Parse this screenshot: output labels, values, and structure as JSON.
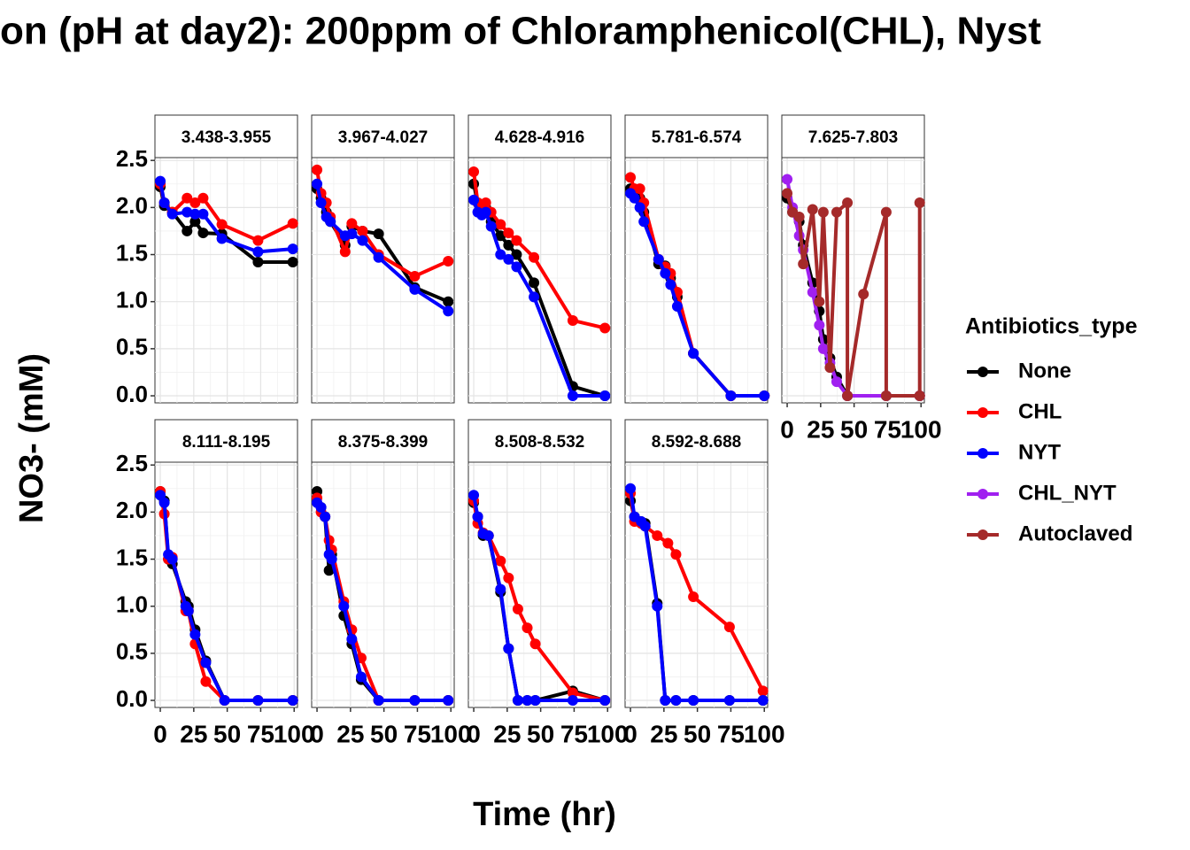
{
  "title": "on (pH at day2): 200ppm of Chloramphenicol(CHL), Nyst",
  "x_label": "Time (hr)",
  "y_label": "NO3- (mM)",
  "legend": {
    "title": "Antibiotics_type",
    "items": [
      {
        "name": "None",
        "color": "#000000"
      },
      {
        "name": "CHL",
        "color": "#ff0000"
      },
      {
        "name": "NYT",
        "color": "#0000ff"
      },
      {
        "name": "CHL_NYT",
        "color": "#a020f0"
      },
      {
        "name": "Autoclaved",
        "color": "#a52a2a"
      }
    ]
  },
  "chart_data": [
    {
      "type": "line",
      "title": "3.438-3.955",
      "x": [
        0,
        3,
        9,
        20,
        26,
        32,
        46,
        73,
        99
      ],
      "series": [
        {
          "name": "None",
          "values": [
            2.22,
            2.02,
            1.95,
            1.75,
            1.85,
            1.73,
            1.72,
            1.42,
            1.42
          ]
        },
        {
          "name": "CHL",
          "values": [
            2.25,
            2.05,
            1.95,
            2.1,
            2.05,
            2.1,
            1.82,
            1.65,
            1.83
          ]
        },
        {
          "name": "NYT",
          "values": [
            2.28,
            2.05,
            1.93,
            1.95,
            1.93,
            1.93,
            1.67,
            1.53,
            1.56
          ]
        }
      ],
      "xlim": [
        -4,
        102.5
      ],
      "ylim": [
        -0.075,
        2.53
      ],
      "xticks": [
        0,
        25,
        50,
        75,
        100
      ],
      "yticks": [
        {
          "value": 0,
          "label": "0.0"
        },
        0.5,
        {
          "value": 1,
          "label": "1.0"
        },
        1.5,
        {
          "value": 2,
          "label": "2.0"
        },
        2.5
      ],
      "grid": true
    },
    {
      "type": "line",
      "title": "3.967-4.027",
      "x": [
        0,
        3,
        7,
        10,
        21,
        26,
        34,
        46,
        73,
        98
      ],
      "series": [
        {
          "name": "None",
          "values": [
            2.2,
            2.1,
            1.95,
            1.85,
            1.6,
            1.8,
            1.75,
            1.72,
            1.15,
            1.0
          ]
        },
        {
          "name": "CHL",
          "values": [
            2.4,
            2.15,
            2.05,
            1.9,
            1.53,
            1.83,
            1.75,
            1.5,
            1.27,
            1.43
          ]
        },
        {
          "name": "NYT",
          "values": [
            2.25,
            2.05,
            1.9,
            1.85,
            1.7,
            1.72,
            1.65,
            1.47,
            1.13,
            0.9
          ]
        }
      ],
      "xlim": [
        -4,
        102.5
      ],
      "ylim": [
        -0.075,
        2.53
      ],
      "xticks": [
        0,
        25,
        50,
        75,
        100
      ],
      "yticks": [
        {
          "value": 0,
          "label": "0.0"
        },
        0.5,
        {
          "value": 1,
          "label": "1.0"
        },
        1.5,
        {
          "value": 2,
          "label": "2.0"
        },
        2.5
      ],
      "grid": true
    },
    {
      "type": "line",
      "title": "4.628-4.916",
      "x": [
        0,
        3,
        6,
        9,
        13,
        20,
        26,
        32,
        45,
        74,
        98
      ],
      "series": [
        {
          "name": "None",
          "values": [
            2.25,
            2.05,
            2.0,
            2.0,
            1.85,
            1.7,
            1.6,
            1.5,
            1.2,
            0.1,
            0.0
          ]
        },
        {
          "name": "CHL",
          "values": [
            2.38,
            2.05,
            2.0,
            2.05,
            1.95,
            1.82,
            1.73,
            1.65,
            1.47,
            0.8,
            0.72
          ]
        },
        {
          "name": "NYT",
          "values": [
            2.08,
            1.95,
            1.92,
            1.95,
            1.8,
            1.5,
            1.45,
            1.37,
            1.05,
            0.0,
            0.0
          ]
        }
      ],
      "xlim": [
        -4,
        102.5
      ],
      "ylim": [
        -0.075,
        2.53
      ],
      "xticks": [
        0,
        25,
        50,
        75,
        100
      ],
      "yticks": [
        {
          "value": 0,
          "label": "0.0"
        },
        0.5,
        {
          "value": 1,
          "label": "1.0"
        },
        1.5,
        {
          "value": 2,
          "label": "2.0"
        },
        2.5
      ],
      "grid": true
    },
    {
      "type": "line",
      "title": "5.781-6.574",
      "x": [
        0,
        3,
        7,
        10,
        21,
        26,
        30,
        35,
        47,
        75,
        100
      ],
      "series": [
        {
          "name": "None",
          "values": [
            2.2,
            2.15,
            2.1,
            1.95,
            1.4,
            1.38,
            1.25,
            1.05,
            0.45,
            0.0,
            0.0
          ]
        },
        {
          "name": "CHL",
          "values": [
            2.32,
            2.2,
            2.2,
            2.05,
            1.45,
            1.37,
            1.3,
            1.1,
            0.45,
            0.0,
            0.0
          ]
        },
        {
          "name": "NYT",
          "values": [
            2.15,
            2.1,
            2.0,
            1.85,
            1.45,
            1.3,
            1.18,
            0.95,
            0.45,
            0.0,
            0.0
          ]
        }
      ],
      "xlim": [
        -4,
        102.5
      ],
      "ylim": [
        -0.075,
        2.53
      ],
      "xticks": [
        0,
        25,
        50,
        75,
        100
      ],
      "yticks": [
        {
          "value": 0,
          "label": "0.0"
        },
        0.5,
        {
          "value": 1,
          "label": "1.0"
        },
        1.5,
        {
          "value": 2,
          "label": "2.0"
        },
        2.5
      ],
      "grid": true
    },
    {
      "type": "line",
      "title": "7.625-7.803",
      "x": [
        0,
        4,
        9,
        12,
        19,
        24,
        27,
        32,
        37,
        45,
        74,
        99
      ],
      "series": [
        {
          "name": "None",
          "values": [
            2.1,
            1.95,
            1.85,
            1.6,
            1.2,
            0.9,
            0.6,
            0.4,
            0.2,
            0.0,
            0.0,
            0.0
          ]
        },
        {
          "name": "CHL_NYT",
          "values": [
            2.3,
            2.0,
            1.7,
            1.55,
            1.1,
            0.75,
            0.5,
            0.35,
            0.15,
            0.0,
            0.0,
            0.0
          ]
        },
        {
          "name": "Autoclaved",
          "x": [
            0,
            4,
            9,
            12,
            19,
            24,
            27,
            32,
            37,
            45,
            45,
            57,
            74,
            74,
            99,
            99
          ],
          "values": [
            2.15,
            1.95,
            1.9,
            1.4,
            1.98,
            1.0,
            1.95,
            0.3,
            1.95,
            2.05,
            0.0,
            1.08,
            1.95,
            0.0,
            0.0,
            2.05
          ]
        }
      ],
      "xlim": [
        -4,
        102.5
      ],
      "ylim": [
        -0.075,
        2.53
      ],
      "xticks": [
        0,
        25,
        50,
        75,
        100
      ],
      "yticks": [
        {
          "value": 0,
          "label": "0.0"
        },
        0.5,
        {
          "value": 1,
          "label": "1.0"
        },
        1.5,
        {
          "value": 2,
          "label": "2.0"
        },
        2.5
      ],
      "grid": true
    },
    {
      "type": "line",
      "title": "8.111-8.195",
      "x": [
        0,
        3,
        6,
        9,
        19,
        21,
        26,
        34,
        48,
        73,
        99
      ],
      "series": [
        {
          "name": "None",
          "values": [
            2.22,
            2.12,
            1.5,
            1.45,
            1.05,
            1.0,
            0.75,
            0.42,
            0.0,
            0.0,
            0.0
          ]
        },
        {
          "name": "CHL",
          "values": [
            2.22,
            1.98,
            1.5,
            1.52,
            0.95,
            0.95,
            0.6,
            0.2,
            0.0,
            0.0,
            0.0
          ]
        },
        {
          "name": "NYT",
          "values": [
            2.18,
            2.1,
            1.55,
            1.5,
            1.0,
            0.95,
            0.7,
            0.4,
            0.0,
            0.0,
            0.0
          ]
        }
      ],
      "xlim": [
        -4,
        102.5
      ],
      "ylim": [
        -0.075,
        2.53
      ],
      "xticks": [
        0,
        25,
        50,
        75,
        100
      ],
      "yticks": [
        {
          "value": 0,
          "label": "0.0"
        },
        0.5,
        {
          "value": 1,
          "label": "1.0"
        },
        1.5,
        {
          "value": 2,
          "label": "2.0"
        },
        2.5
      ],
      "grid": true
    },
    {
      "type": "line",
      "title": "8.375-8.399",
      "x": [
        0,
        3,
        6,
        9,
        11,
        20,
        26,
        33,
        46,
        73,
        98
      ],
      "series": [
        {
          "name": "None",
          "values": [
            2.22,
            2.05,
            1.95,
            1.38,
            1.55,
            0.9,
            0.6,
            0.22,
            0.0,
            0.0,
            0.0
          ]
        },
        {
          "name": "CHL",
          "values": [
            2.15,
            2.0,
            1.95,
            1.7,
            1.6,
            1.05,
            0.75,
            0.45,
            0.0,
            0.0,
            0.0
          ]
        },
        {
          "name": "NYT",
          "values": [
            2.1,
            2.05,
            1.95,
            1.55,
            1.5,
            1.0,
            0.65,
            0.25,
            0.0,
            0.0,
            0.0
          ]
        }
      ],
      "xlim": [
        -4,
        102.5
      ],
      "ylim": [
        -0.075,
        2.53
      ],
      "xticks": [
        0,
        25,
        50,
        75,
        100
      ],
      "yticks": [
        {
          "value": 0,
          "label": "0.0"
        },
        0.5,
        {
          "value": 1,
          "label": "1.0"
        },
        1.5,
        {
          "value": 2,
          "label": "2.0"
        },
        2.5
      ],
      "grid": true
    },
    {
      "type": "line",
      "title": "8.508-8.532",
      "x": [
        0,
        3,
        7,
        11,
        20,
        26,
        33,
        40,
        46,
        74,
        98
      ],
      "series": [
        {
          "name": "None",
          "values": [
            2.1,
            1.95,
            1.75,
            1.75,
            1.15,
            0.55,
            0.0,
            0.0,
            0.0,
            0.1,
            0.0
          ]
        },
        {
          "name": "CHL",
          "values": [
            2.12,
            1.88,
            1.78,
            1.75,
            1.48,
            1.3,
            0.97,
            0.77,
            0.6,
            0.08,
            0.0
          ]
        },
        {
          "name": "NYT",
          "values": [
            2.18,
            1.95,
            1.77,
            1.75,
            1.18,
            0.55,
            0.0,
            0.0,
            0.0,
            0.0,
            0.0
          ]
        }
      ],
      "xlim": [
        -4,
        102.5
      ],
      "ylim": [
        -0.075,
        2.53
      ],
      "xticks": [
        0,
        25,
        50,
        75,
        100
      ],
      "yticks": [
        {
          "value": 0,
          "label": "0.0"
        },
        0.5,
        {
          "value": 1,
          "label": "1.0"
        },
        1.5,
        {
          "value": 2,
          "label": "2.0"
        },
        2.5
      ],
      "grid": true
    },
    {
      "type": "line",
      "title": "8.592-8.688",
      "x": [
        0,
        3,
        8,
        11,
        20,
        26,
        34,
        47,
        74,
        99
      ],
      "series": [
        {
          "name": "None",
          "values": [
            2.12,
            1.95,
            1.9,
            1.88,
            1.03,
            0.0,
            0.0,
            0.0,
            0.0,
            0.0
          ]
        },
        {
          "name": "CHL",
          "x": [
            0,
            3,
            8,
            11,
            20,
            28,
            34,
            47,
            74,
            99
          ],
          "values": [
            2.2,
            1.9,
            1.88,
            1.85,
            1.75,
            1.67,
            1.55,
            1.1,
            0.78,
            0.1
          ]
        },
        {
          "name": "NYT",
          "values": [
            2.25,
            1.95,
            1.9,
            1.85,
            1.0,
            0.0,
            0.0,
            0.0,
            0.0,
            0.0
          ]
        }
      ],
      "xlim": [
        -4,
        102.5
      ],
      "ylim": [
        -0.075,
        2.53
      ],
      "xticks": [
        0,
        25,
        50,
        75,
        100
      ],
      "yticks": [
        {
          "value": 0,
          "label": "0.0"
        },
        0.5,
        {
          "value": 1,
          "label": "1.0"
        },
        1.5,
        {
          "value": 2,
          "label": "2.0"
        },
        2.5
      ],
      "grid": true
    }
  ]
}
